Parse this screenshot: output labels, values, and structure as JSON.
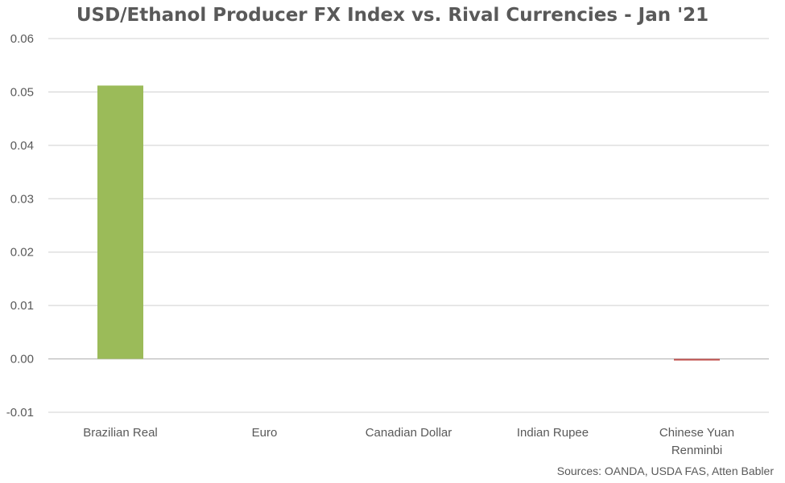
{
  "chart_data": {
    "type": "bar",
    "title": "USD/Ethanol Producer FX Index vs. Rival Currencies - Jan '21",
    "categories": [
      "Brazilian Real",
      "Euro",
      "Canadian Dollar",
      "Indian Rupee",
      "Chinese Yuan Renminbi"
    ],
    "category_lines": [
      [
        "Brazilian Real"
      ],
      [
        "Euro"
      ],
      [
        "Canadian Dollar"
      ],
      [
        "Indian Rupee"
      ],
      [
        "Chinese Yuan",
        "Renminbi"
      ]
    ],
    "values": [
      0.0512,
      0.0,
      0.0,
      0.0,
      -0.0003
    ],
    "bar_colors": [
      "#9bbb59",
      "#9bbb59",
      "#9bbb59",
      "#9bbb59",
      "#c0504d"
    ],
    "ylim": [
      -0.01,
      0.06
    ],
    "yticks": [
      "0.06",
      "0.05",
      "0.04",
      "0.03",
      "0.02",
      "0.01",
      "0.00",
      "-0.01"
    ],
    "ytick_values": [
      0.06,
      0.05,
      0.04,
      0.03,
      0.02,
      0.01,
      0.0,
      -0.01
    ],
    "grid": true,
    "legend": "none",
    "source": "Sources: OANDA, USDA FAS, Atten Babler"
  }
}
